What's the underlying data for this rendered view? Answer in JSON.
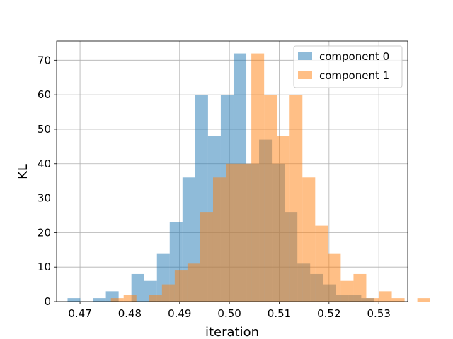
{
  "chart_data": {
    "type": "histogram",
    "xlabel": "iteration",
    "ylabel": "KL",
    "xlim": [
      0.4653,
      0.5358
    ],
    "ylim": [
      0,
      75.6
    ],
    "xticks": [
      0.47,
      0.48,
      0.49,
      0.5,
      0.51,
      0.52,
      0.53
    ],
    "xtick_labels": [
      "0.47",
      "0.48",
      "0.49",
      "0.50",
      "0.51",
      "0.52",
      "0.53"
    ],
    "yticks": [
      0,
      10,
      20,
      30,
      40,
      50,
      60,
      70
    ],
    "ytick_labels": [
      "0",
      "10",
      "20",
      "30",
      "40",
      "50",
      "60",
      "70"
    ],
    "grid": true,
    "legend_position": "top-right",
    "series": [
      {
        "name": "component 0",
        "color": "#1f77b4",
        "alpha": 0.5,
        "bin_start": 0.4675,
        "bin_width": 0.002564,
        "counts": [
          1,
          0,
          1,
          3,
          0,
          8,
          6,
          14,
          23,
          36,
          60,
          48,
          60,
          72,
          40,
          47,
          40,
          26,
          11,
          8,
          5,
          2,
          2,
          1,
          0,
          0
        ]
      },
      {
        "name": "component 1",
        "color": "#ff7f0e",
        "alpha": 0.5,
        "bin_start": 0.4762,
        "bin_width": 0.002564,
        "counts": [
          1,
          2,
          0,
          2,
          5,
          9,
          11,
          26,
          36,
          40,
          40,
          72,
          60,
          48,
          60,
          36,
          22,
          14,
          6,
          8,
          1,
          3,
          1,
          0,
          1
        ]
      }
    ]
  }
}
